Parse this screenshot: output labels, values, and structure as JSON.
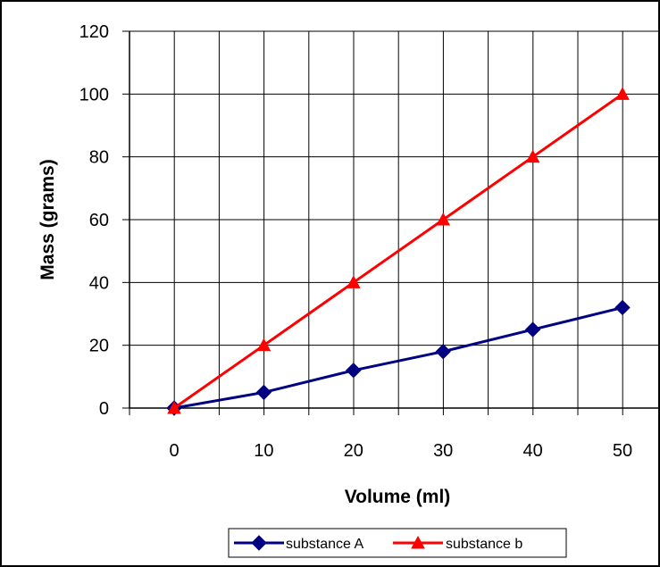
{
  "chart_data": {
    "type": "line",
    "title": "",
    "xlabel": "Volume (ml)",
    "ylabel": "Mass (grams)",
    "x": [
      0,
      10,
      20,
      30,
      40,
      50
    ],
    "ylim": [
      0,
      120
    ],
    "yticks": [
      0,
      20,
      40,
      60,
      80,
      100,
      120
    ],
    "grid": true,
    "legend_position": "bottom",
    "series": [
      {
        "name": "substance A",
        "color": "#000080",
        "marker": "diamond",
        "values": [
          0,
          5,
          12,
          18,
          25,
          32
        ]
      },
      {
        "name": "substance b",
        "color": "#ff0000",
        "marker": "triangle",
        "values": [
          0,
          20,
          40,
          60,
          80,
          100
        ]
      }
    ]
  }
}
